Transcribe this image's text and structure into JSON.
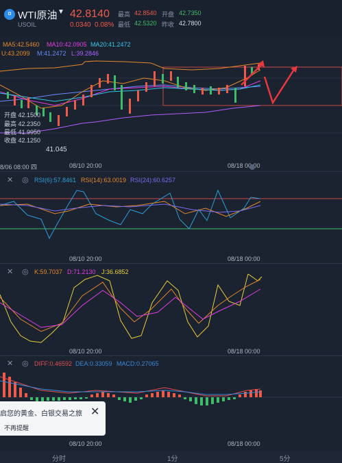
{
  "header": {
    "symbol": "WTI原油",
    "symbol_code": "USOIL",
    "logo_glyph": "¤",
    "price": "42.8140",
    "change": "0.0340",
    "change_pct": "0.08%",
    "quotes": [
      {
        "label": "最高",
        "value": "42.8540",
        "color": "red"
      },
      {
        "label": "开盘",
        "value": "42.7350",
        "color": "green"
      },
      {
        "label": "最低",
        "value": "42.5320",
        "color": "green"
      },
      {
        "label": "昨收",
        "value": "42.7800",
        "color": "white"
      }
    ]
  },
  "main": {
    "ma_legend": [
      {
        "text": "MA5:42.5460",
        "color": "#e38a2c"
      },
      {
        "text": "MA10:42.0905",
        "color": "#e040e0"
      },
      {
        "text": "MA20:41.2472",
        "color": "#33c7e8"
      }
    ],
    "boll_legend": [
      {
        "text": "U:43.2099",
        "color": "#e38a2c"
      },
      {
        "text": "M:41.2472",
        "color": "#6a8cff"
      },
      {
        "text": "L:39.2846",
        "color": "#b060ff"
      }
    ],
    "ohlc": [
      {
        "label": "开盘",
        "value": "42.1500"
      },
      {
        "label": "最高",
        "value": "42.2350"
      },
      {
        "label": "最低",
        "value": "41.9950"
      },
      {
        "label": "收盘",
        "value": "42.1250"
      }
    ],
    "low_marker": "41.045",
    "dates": [
      "8/06 08:00 四",
      "08/10 20:00",
      "08/18 00:00"
    ]
  },
  "rsi": {
    "legend": [
      {
        "text": "RSI(6):57.8461",
        "color": "#2f9fd8"
      },
      {
        "text": "RSI(14):63.0019",
        "color": "#e38a2c"
      },
      {
        "text": "RSI(24):60.6257",
        "color": "#7b6cf0"
      }
    ],
    "dates": [
      "08/10 20:00",
      "08/18 00:00"
    ]
  },
  "kdj": {
    "legend": [
      {
        "text": "K:59.7037",
        "color": "#e38a2c"
      },
      {
        "text": "D:71.2130",
        "color": "#e040e0"
      },
      {
        "text": "J:36.6852",
        "color": "#e8d13a"
      }
    ],
    "dates": [
      "08/10 20:00",
      "08/18 00:00"
    ]
  },
  "macd": {
    "legend": [
      {
        "text": "DIFF:0.46592",
        "color": "#e05050"
      },
      {
        "text": "DEA:0.33059",
        "color": "#3a8ad8"
      },
      {
        "text": "MACD:0.27065",
        "color": "#3a8ad8"
      }
    ],
    "dates": [
      "08/10 20:00",
      "08/18 00:00"
    ]
  },
  "popup": {
    "title": "启您的黄金、白银交易之旅",
    "subtitle": "不再提醒",
    "close": "✕"
  },
  "tabs": [
    "分时",
    "1分",
    "5分"
  ],
  "icons": {
    "close": "✕",
    "settings": "◎",
    "caret": "▼"
  }
}
